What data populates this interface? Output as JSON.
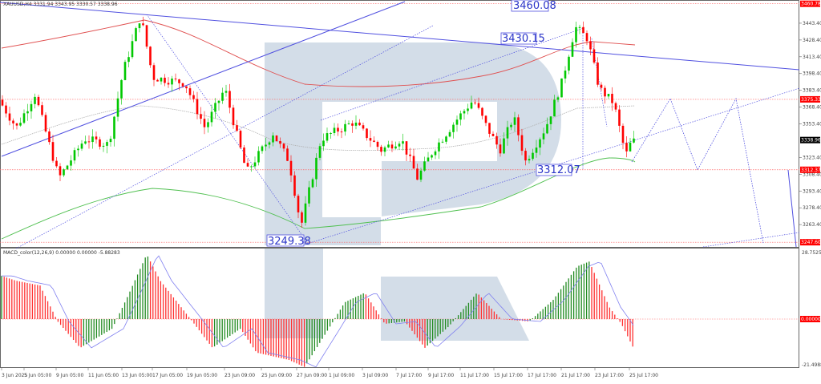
{
  "header": {
    "symbol_line": "XAUUSD,H4  3331.94 3343.95 3330.57 3338.96",
    "indicator_line": "MACD_color(12,26,9) 0.00000 0.00000 -5.88283"
  },
  "callouts": {
    "level_top": "3460.08",
    "level_mid": "3430.15",
    "level_support": "3312.07",
    "level_low": "3249.38"
  },
  "price_axis": {
    "ticks": [
      "3443.40",
      "3428.40",
      "3413.40",
      "3398.40",
      "3383.40",
      "3368.40",
      "3353.40",
      "3323.40",
      "3308.40",
      "3293.40",
      "3278.40",
      "3263.40"
    ],
    "tags": [
      {
        "label": "3460.78",
        "color": "#ff0000"
      },
      {
        "label": "3375.33",
        "color": "#ff0000"
      },
      {
        "label": "3338.96",
        "color": "#000000"
      },
      {
        "label": "3312.37",
        "color": "#ff0000"
      },
      {
        "label": "3247.60",
        "color": "#ff0000"
      }
    ]
  },
  "macd_axis": {
    "top": "28.7525",
    "zero_tag": "0.00000",
    "bottom": "-21.49884"
  },
  "time_axis": {
    "ticks": [
      "3 Jun 2025",
      "5 Jun 05:00",
      "9 Jun 05:00",
      "11 Jun 05:00",
      "13 Jun 05:00",
      "17 Jun 05:00",
      "19 Jun 05:00",
      "23 Jun 09:00",
      "25 Jun 09:00",
      "27 Jun 09:00",
      "1 Jul 09:00",
      "3 Jul 09:00",
      "7 Jul 17:00",
      "9 Jul 17:00",
      "11 Jul 17:00",
      "15 Jul 17:00",
      "17 Jul 17:00",
      "21 Jul 17:00",
      "23 Jul 17:00",
      "25 Jul 17:00"
    ]
  },
  "colors": {
    "bull": "#00c800",
    "bear": "#ff0000",
    "trendline": "#5050e0",
    "ma_red": "#e05050",
    "ma_green": "#50c050",
    "ma_gray": "#b0b0b0",
    "watermark": "#d3dde8",
    "macd_bull": "#228b22",
    "macd_bear": "#ff3030",
    "signal": "#8080f0"
  },
  "chart_data": [
    {
      "type": "candlestick",
      "title": "XAUUSD, H4",
      "ohlc_last": {
        "open": 3331.94,
        "high": 3343.95,
        "low": 3330.57,
        "close": 3338.96
      },
      "x": [
        "3 Jun 2025",
        "5 Jun 05:00",
        "9 Jun 05:00",
        "11 Jun 05:00",
        "13 Jun 05:00",
        "17 Jun 05:00",
        "19 Jun 05:00",
        "23 Jun 09:00",
        "25 Jun 09:00",
        "27 Jun 09:00",
        "1 Jul 09:00",
        "3 Jul 09:00",
        "7 Jul 17:00",
        "9 Jul 17:00",
        "11 Jul 17:00",
        "15 Jul 17:00",
        "17 Jul 17:00",
        "21 Jul 17:00",
        "23 Jul 17:00",
        "25 Jul 17:00"
      ],
      "approx_close": [
        3375,
        3340,
        3335,
        3385,
        3440,
        3395,
        3360,
        3340,
        3330,
        3255,
        3345,
        3345,
        3320,
        3320,
        3360,
        3330,
        3350,
        3425,
        3370,
        3338
      ],
      "ylim": [
        3247,
        3462
      ],
      "horizontal_levels": [
        3460.78,
        3375.33,
        3312.37,
        3247.6
      ],
      "annotations": [
        "3460.08",
        "3430.15",
        "3312.07",
        "3249.38"
      ],
      "forecast_path": [
        3338,
        3375,
        3312,
        3375,
        3312,
        3247
      ],
      "grid": false
    },
    {
      "type": "bar",
      "title": "MACD_color(12,26,9)",
      "values_label": "0.00000 0.00000 -5.88283",
      "ylim": [
        -21.49884,
        28.7525
      ],
      "series": [
        {
          "name": "MACD histogram",
          "approx_peaks": [
            12,
            -5,
            27,
            -8,
            -13,
            -16,
            7,
            -5,
            22,
            -6
          ]
        },
        {
          "name": "Signal",
          "approx_last": -5.88
        }
      ]
    }
  ]
}
